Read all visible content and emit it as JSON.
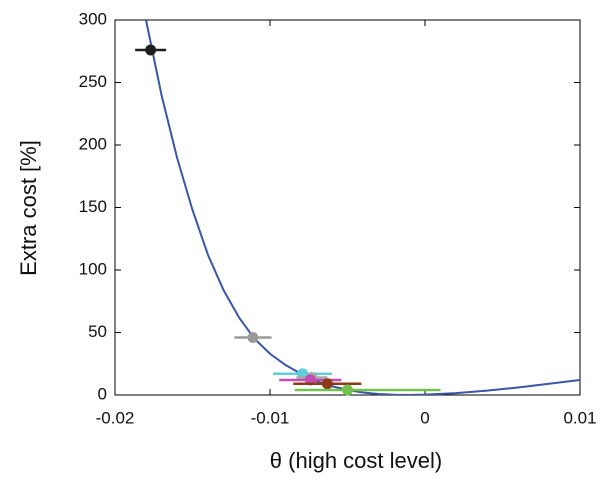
{
  "chart_data": {
    "type": "scatter",
    "x_label": "θ (high cost level)",
    "y_label": "Extra cost [%]",
    "xlim": [
      -0.02,
      0.01
    ],
    "xticks": [
      -0.02,
      -0.01,
      0,
      0.01
    ],
    "ylim": [
      0,
      300
    ],
    "yticks": [
      0,
      50,
      100,
      150,
      200,
      250,
      300
    ],
    "curve": {
      "color": "#3a56a8",
      "x": [
        -0.018,
        -0.017,
        -0.016,
        -0.015,
        -0.014,
        -0.013,
        -0.012,
        -0.011,
        -0.01,
        -0.009,
        -0.008,
        -0.007,
        -0.006,
        -0.005,
        -0.004,
        -0.003,
        -0.002,
        -0.001,
        0,
        0.002,
        0.004,
        0.006,
        0.008,
        0.01
      ],
      "values": [
        300,
        240,
        190,
        148,
        112,
        84,
        62,
        45,
        33,
        24,
        17,
        11,
        7,
        4,
        2,
        0.8,
        0.2,
        0,
        0.3,
        1.5,
        3.5,
        6,
        9,
        12
      ]
    },
    "points": {
      "x": [
        -0.0177,
        -0.0111,
        -0.0079,
        -0.0073,
        -0.0074,
        -0.0063,
        -0.005
      ],
      "values": [
        276,
        46,
        17,
        14,
        12,
        9,
        4
      ],
      "x_low": [
        -0.0187,
        -0.0123,
        -0.0098,
        -0.0083,
        -0.0094,
        -0.0085,
        -0.0084
      ],
      "x_high": [
        -0.0167,
        -0.0099,
        -0.006,
        -0.0063,
        -0.0054,
        -0.0041,
        0.001
      ],
      "colors": [
        "#1e1e1e",
        "#9a9a9a",
        "#5fd0d8",
        "#a8a8a8",
        "#c54ab4",
        "#8b3a1a",
        "#72c24e"
      ]
    }
  }
}
